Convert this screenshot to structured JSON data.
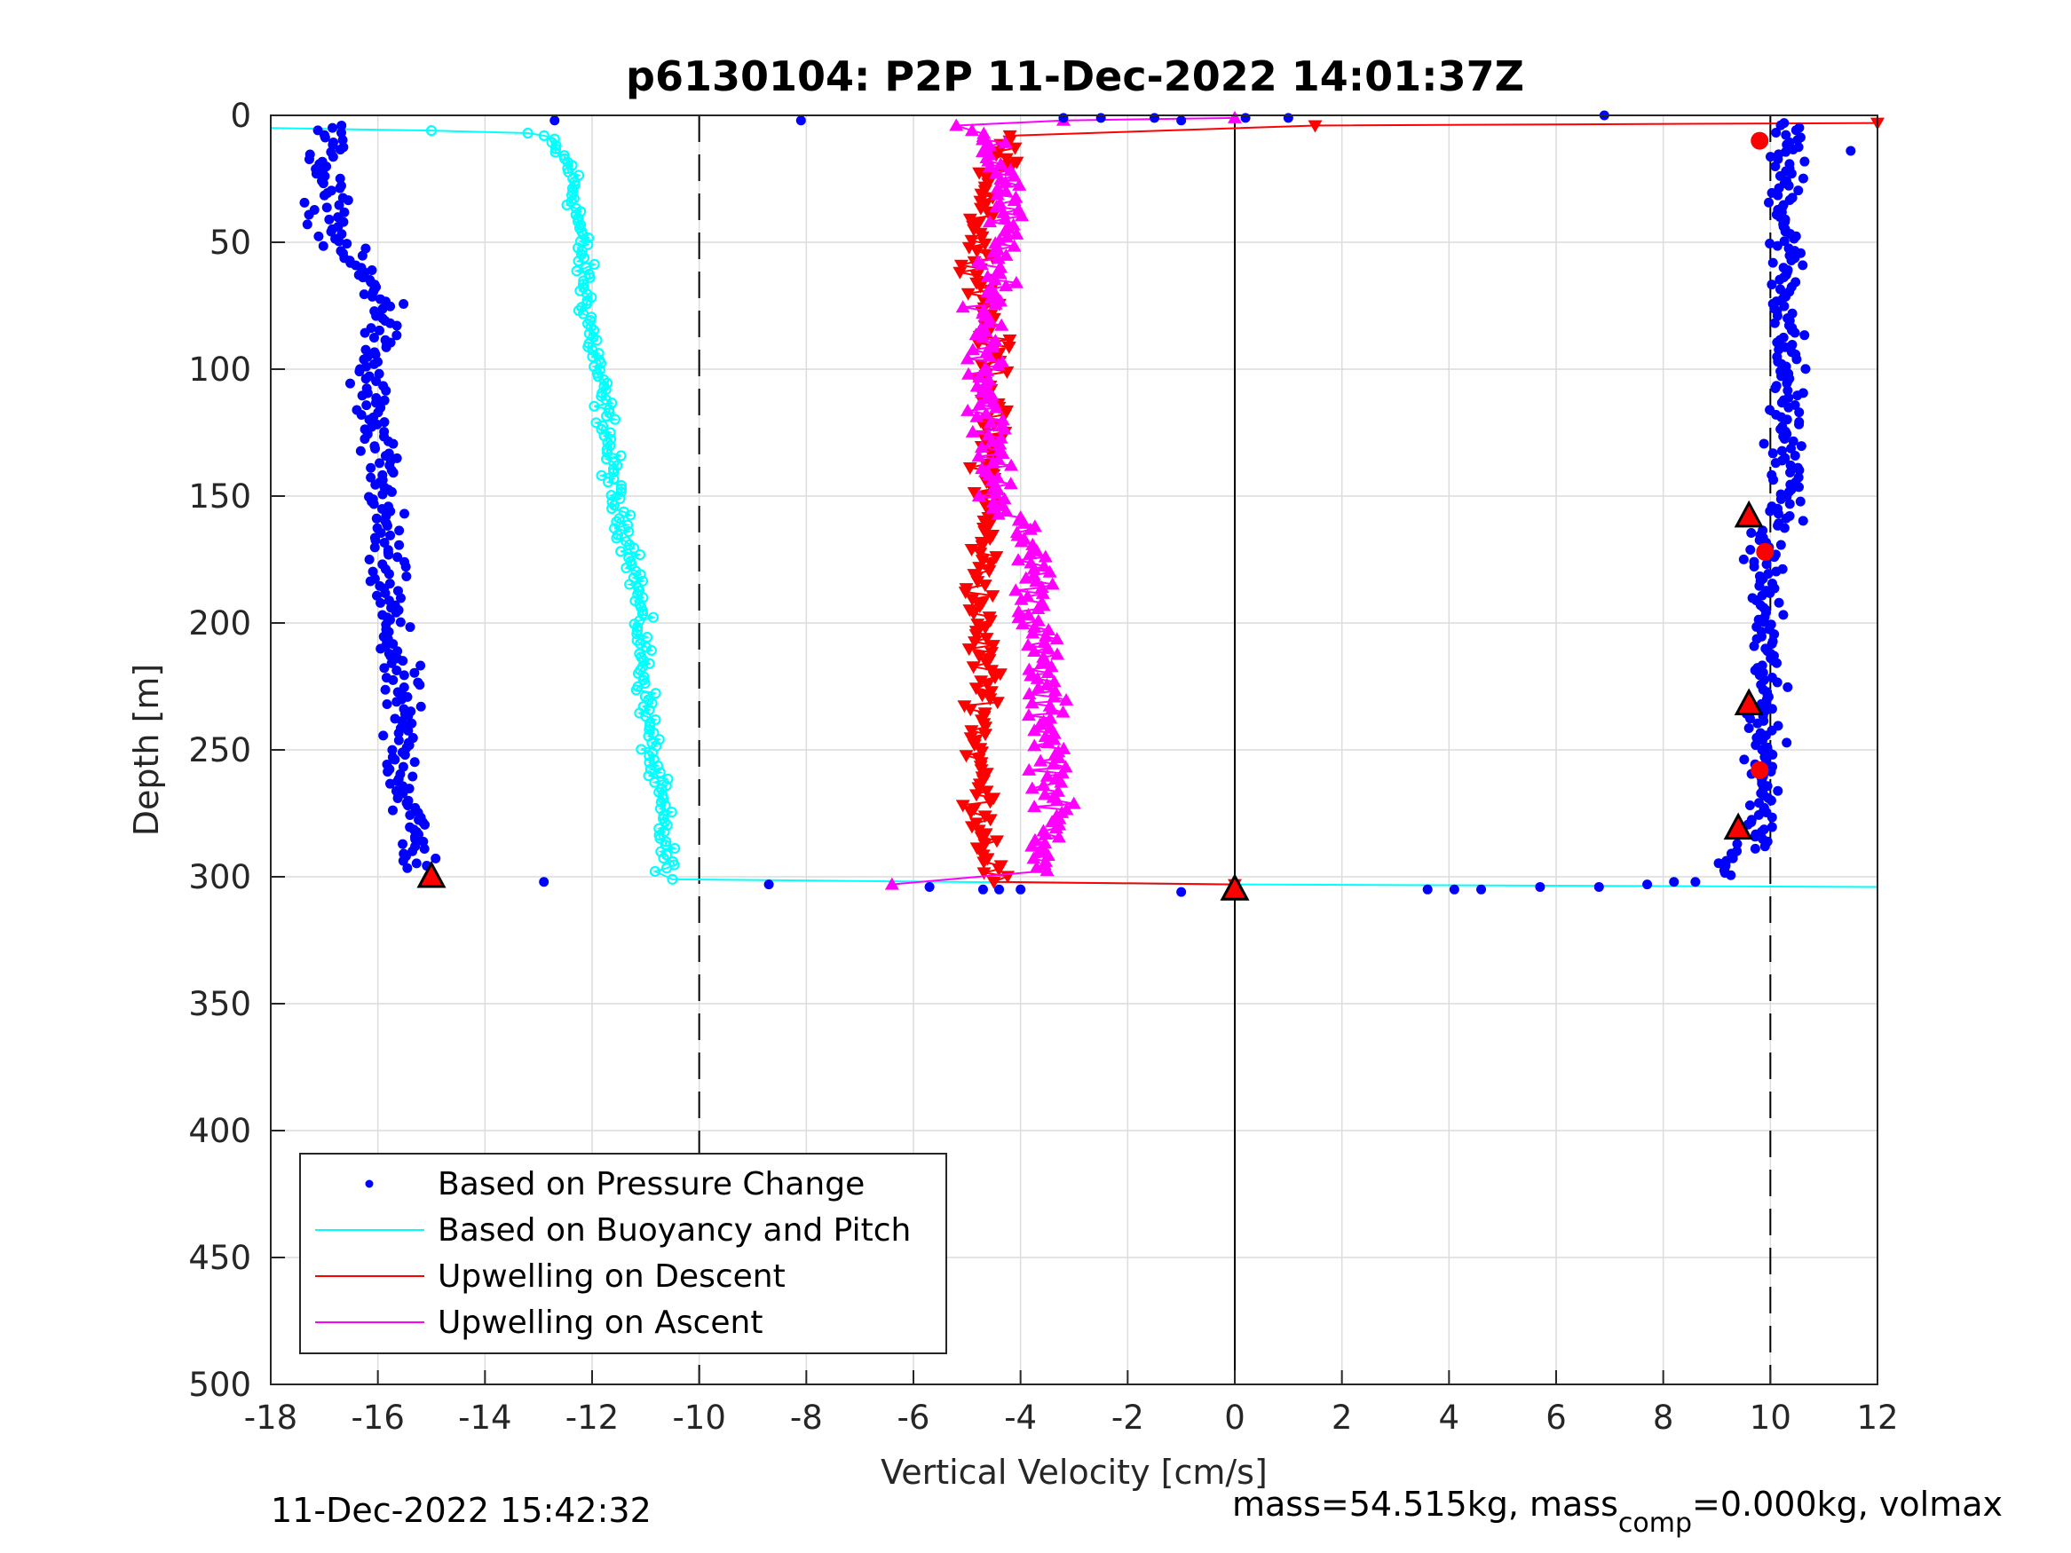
{
  "chart_data": {
    "type": "scatter",
    "title": "p6130104: P2P 11-Dec-2022 14:01:37Z",
    "xlabel": "Vertical Velocity [cm/s]",
    "ylabel": "Depth [m]",
    "xlim": [
      -18,
      12
    ],
    "ylim": [
      0,
      500
    ],
    "y_reversed": true,
    "grid": true,
    "xticks": [
      "-18",
      "-16",
      "-14",
      "-12",
      "-10",
      "-8",
      "-6",
      "-4",
      "-2",
      "0",
      "2",
      "4",
      "6",
      "8",
      "10",
      "12"
    ],
    "yticks": [
      "0",
      "50",
      "100",
      "150",
      "200",
      "250",
      "300",
      "350",
      "400",
      "450",
      "500"
    ],
    "reference_lines": [
      {
        "x": -10,
        "style": "dashed",
        "color": "#000000"
      },
      {
        "x": 0,
        "style": "solid",
        "color": "#000000"
      },
      {
        "x": 10,
        "style": "dashed",
        "color": "#000000"
      }
    ],
    "legend_position": "bottom-left",
    "series": [
      {
        "name": "Based on Pressure Change",
        "color": "#0000ff",
        "marker": "dot",
        "descent_mean_x": -16.2,
        "ascent_mean_x": 10.0,
        "profile": [
          [
            3,
            -16.9
          ],
          [
            25,
            -17.0
          ],
          [
            50,
            -16.8
          ],
          [
            75,
            -15.8
          ],
          [
            100,
            -16.2
          ],
          [
            125,
            -16.1
          ],
          [
            150,
            -15.9
          ],
          [
            175,
            -15.9
          ],
          [
            200,
            -15.8
          ],
          [
            225,
            -15.6
          ],
          [
            250,
            -15.6
          ],
          [
            275,
            -15.4
          ],
          [
            297,
            -15.2
          ]
        ]
      },
      {
        "name": "Based on Buoyancy and Pitch",
        "color": "#00ffff",
        "marker": "circle-line",
        "profile": [
          [
            6,
            -13.0
          ],
          [
            20,
            -12.4
          ],
          [
            50,
            -12.2
          ],
          [
            75,
            -12.1
          ],
          [
            100,
            -11.9
          ],
          [
            125,
            -11.7
          ],
          [
            150,
            -11.6
          ],
          [
            175,
            -11.2
          ],
          [
            200,
            -11.1
          ],
          [
            225,
            -11.0
          ],
          [
            250,
            -10.9
          ],
          [
            275,
            -10.7
          ],
          [
            298,
            -10.6
          ]
        ]
      },
      {
        "name": "Upwelling on Descent",
        "color": "#ff0000",
        "marker": "triangle-down",
        "profile": [
          [
            3,
            -4.2
          ],
          [
            25,
            -4.5
          ],
          [
            50,
            -4.8
          ],
          [
            75,
            -4.6
          ],
          [
            100,
            -4.5
          ],
          [
            125,
            -4.6
          ],
          [
            150,
            -4.6
          ],
          [
            175,
            -4.7
          ],
          [
            200,
            -4.8
          ],
          [
            225,
            -4.6
          ],
          [
            250,
            -4.8
          ],
          [
            275,
            -4.7
          ],
          [
            300,
            -4.5
          ]
        ]
      },
      {
        "name": "Upwelling on Ascent",
        "color": "#ff00ff",
        "marker": "triangle-up",
        "profile": [
          [
            3,
            -5.0
          ],
          [
            25,
            -4.2
          ],
          [
            50,
            -4.4
          ],
          [
            75,
            -4.6
          ],
          [
            100,
            -4.6
          ],
          [
            125,
            -4.6
          ],
          [
            150,
            -4.4
          ],
          [
            175,
            -3.7
          ],
          [
            200,
            -3.7
          ],
          [
            225,
            -3.6
          ],
          [
            250,
            -3.4
          ],
          [
            275,
            -3.4
          ],
          [
            298,
            -3.5
          ]
        ]
      }
    ],
    "special_markers": [
      {
        "type": "triangle",
        "x": -15.0,
        "y": 300
      },
      {
        "type": "triangle",
        "x": 0.0,
        "y": 305
      },
      {
        "type": "triangle",
        "x": 9.6,
        "y": 158
      },
      {
        "type": "triangle",
        "x": 9.6,
        "y": 232
      },
      {
        "type": "triangle",
        "x": 9.4,
        "y": 281
      },
      {
        "type": "dot",
        "x": 9.8,
        "y": 10
      },
      {
        "type": "dot",
        "x": 9.9,
        "y": 172
      },
      {
        "type": "dot",
        "x": 9.8,
        "y": 258
      }
    ]
  },
  "footer": {
    "timestamp": "11-Dec-2022 15:42:32",
    "mass_text_a": "mass=54.515kg, mass",
    "mass_sub": "comp",
    "mass_text_b": "=0.000kg, volmax"
  }
}
